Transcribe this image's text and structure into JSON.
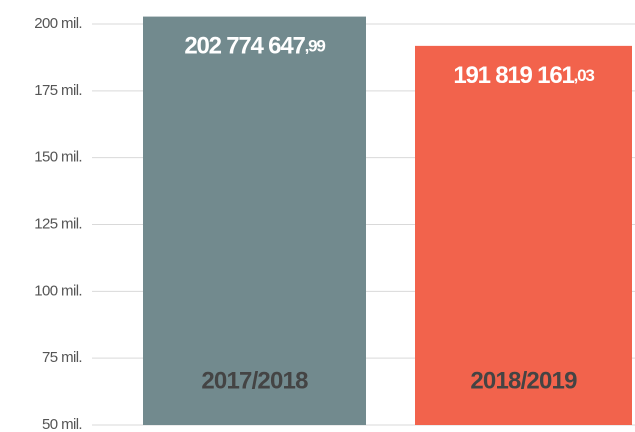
{
  "chart_data": {
    "type": "bar",
    "categories": [
      "2017/2018",
      "2018/2019"
    ],
    "values": [
      202774647.99,
      191819161.03
    ],
    "value_labels": [
      "202 774 647,99",
      "191 819 161,03"
    ],
    "colors": [
      "#728a8e",
      "#f2634c"
    ],
    "ylim": [
      50000000,
      200000000
    ],
    "yticks": [
      {
        "value": 50000000,
        "label": "50 mil."
      },
      {
        "value": 75000000,
        "label": "75 mil."
      },
      {
        "value": 100000000,
        "label": "100 mil."
      },
      {
        "value": 125000000,
        "label": "125 mil."
      },
      {
        "value": 150000000,
        "label": "150 mil."
      },
      {
        "value": 175000000,
        "label": "175 mil."
      },
      {
        "value": 200000000,
        "label": "200 mil."
      }
    ],
    "grid": true
  }
}
